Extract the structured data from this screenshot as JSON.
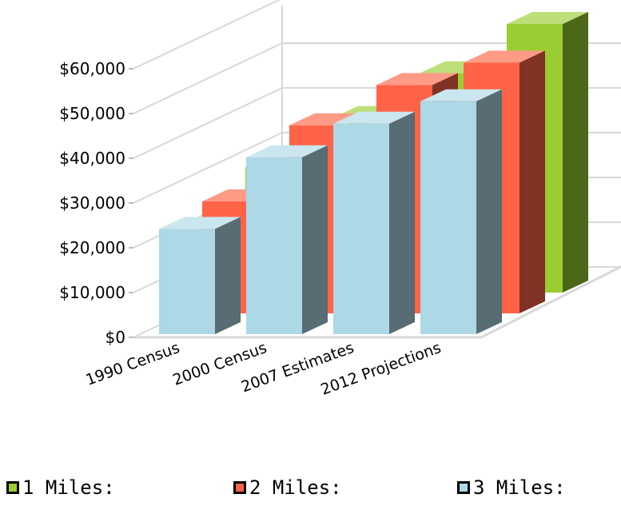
{
  "chart_data": {
    "type": "bar",
    "style": "3d-clustered",
    "categories": [
      "1990 Census",
      "2000 Census",
      "2007 Estimates",
      "2012 Projections"
    ],
    "series": [
      {
        "name": "1 Miles:",
        "color": "#9ACD32",
        "values": [
          28000,
          39000,
          49000,
          60000
        ]
      },
      {
        "name": "2 Miles:",
        "color": "#FF6347",
        "values": [
          25000,
          42000,
          51000,
          56000
        ]
      },
      {
        "name": "3 Miles:",
        "color": "#ADD8E6",
        "values": [
          23500,
          39500,
          47000,
          52000
        ]
      }
    ],
    "yticks": [
      "$0",
      "$10,000",
      "$20,000",
      "$30,000",
      "$40,000",
      "$50,000",
      "$60,000"
    ],
    "ylim": [
      0,
      60000
    ],
    "grid": true,
    "legend_position": "bottom"
  }
}
